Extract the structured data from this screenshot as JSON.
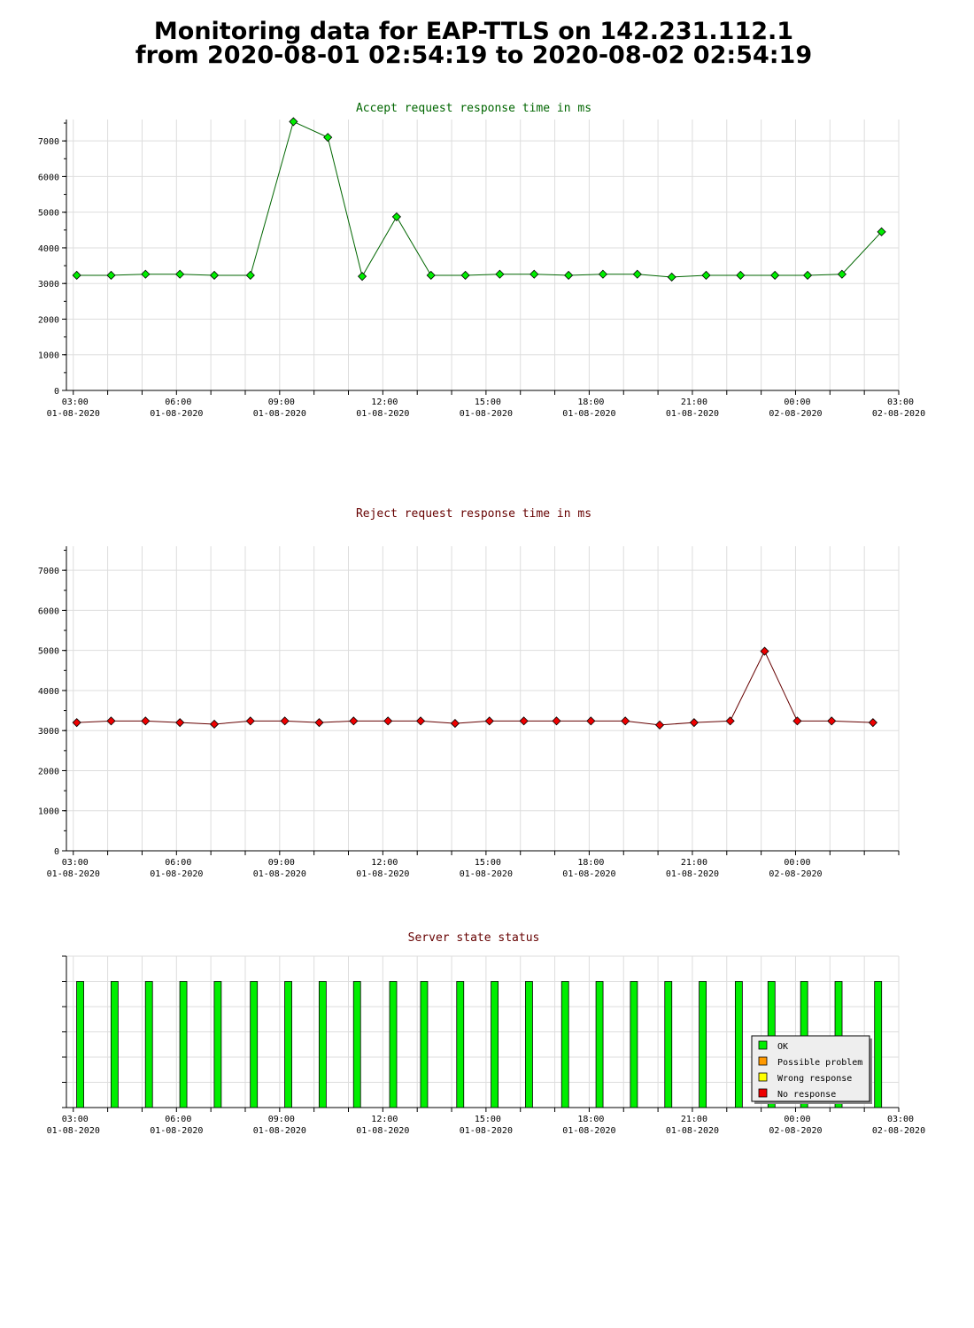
{
  "page": {
    "title_line1": "Monitoring data for EAP-TTLS on 142.231.112.1",
    "title_line2": "from 2020-08-01 02:54:19 to 2020-08-02 02:54:19"
  },
  "colors": {
    "accept_title": "#006600",
    "reject_title": "#660000",
    "status_title": "#660000",
    "accept_line": "#006600",
    "reject_line": "#660000",
    "accept_point": "#00ee00",
    "reject_point": "#ee0000",
    "ok": "#00ee00",
    "possible_problem": "#ff9900",
    "wrong_response": "#ffff00",
    "no_response": "#ee0000",
    "grid": "#dddddd"
  },
  "chart_data": [
    {
      "id": "accept",
      "type": "line",
      "title": "Accept request response time in ms",
      "x_unit": "hours since 2020-08-01 03:00",
      "xlim": [
        -0.2,
        24
      ],
      "ylim": [
        0,
        7600
      ],
      "y_ticks": [
        0,
        1000,
        2000,
        3000,
        4000,
        5000,
        6000,
        7000
      ],
      "x_ticks": [
        {
          "at": 0,
          "time": "03:00",
          "date": "01-08-2020"
        },
        {
          "at": 3,
          "time": "06:00",
          "date": "01-08-2020"
        },
        {
          "at": 6,
          "time": "09:00",
          "date": "01-08-2020"
        },
        {
          "at": 9,
          "time": "12:00",
          "date": "01-08-2020"
        },
        {
          "at": 12,
          "time": "15:00",
          "date": "01-08-2020"
        },
        {
          "at": 15,
          "time": "18:00",
          "date": "01-08-2020"
        },
        {
          "at": 18,
          "time": "21:00",
          "date": "01-08-2020"
        },
        {
          "at": 21,
          "time": "00:00",
          "date": "02-08-2020"
        },
        {
          "at": 24,
          "time": "03:00",
          "date": "02-08-2020"
        }
      ],
      "grid": true,
      "x": [
        0.1,
        1.1,
        2.1,
        3.1,
        4.1,
        5.15,
        6.4,
        7.4,
        8.4,
        9.4,
        10.4,
        11.4,
        12.4,
        13.4,
        14.4,
        15.4,
        16.4,
        17.4,
        18.4,
        19.4,
        20.4,
        21.35,
        22.35,
        23.5
      ],
      "values": [
        3230,
        3230,
        3260,
        3260,
        3230,
        3230,
        7540,
        7100,
        3200,
        4870,
        3230,
        3230,
        3260,
        3260,
        3230,
        3260,
        3260,
        3180,
        3230,
        3230,
        3230,
        3230,
        3260,
        4450
      ]
    },
    {
      "id": "reject",
      "type": "line",
      "title": "Reject request response time in ms",
      "x_unit": "hours since 2020-08-01 03:00",
      "xlim": [
        -0.2,
        24
      ],
      "ylim": [
        0,
        7600
      ],
      "y_ticks": [
        0,
        1000,
        2000,
        3000,
        4000,
        5000,
        6000,
        7000
      ],
      "x_ticks": [
        {
          "at": 0,
          "time": "03:00",
          "date": "01-08-2020"
        },
        {
          "at": 3,
          "time": "06:00",
          "date": "01-08-2020"
        },
        {
          "at": 6,
          "time": "09:00",
          "date": "01-08-2020"
        },
        {
          "at": 9,
          "time": "12:00",
          "date": "01-08-2020"
        },
        {
          "at": 12,
          "time": "15:00",
          "date": "01-08-2020"
        },
        {
          "at": 15,
          "time": "18:00",
          "date": "01-08-2020"
        },
        {
          "at": 18,
          "time": "21:00",
          "date": "01-08-2020"
        },
        {
          "at": 21,
          "time": "00:00",
          "date": "02-08-2020"
        }
      ],
      "grid": true,
      "x": [
        0.1,
        1.1,
        2.1,
        3.1,
        4.1,
        5.15,
        6.15,
        7.15,
        8.15,
        9.15,
        10.1,
        11.1,
        12.1,
        13.1,
        14.05,
        15.05,
        16.05,
        17.05,
        18.05,
        19.1,
        20.1,
        21.05,
        22.05,
        23.25
      ],
      "values": [
        3200,
        3240,
        3240,
        3200,
        3160,
        3240,
        3240,
        3200,
        3240,
        3240,
        3240,
        3180,
        3240,
        3240,
        3240,
        3240,
        3240,
        3140,
        3200,
        3240,
        4980,
        3240,
        3240,
        3200
      ]
    },
    {
      "id": "status",
      "type": "bar",
      "title": "Server state status",
      "x_unit": "hours since 2020-08-01 03:00",
      "xlim": [
        -0.2,
        24
      ],
      "x_ticks": [
        {
          "at": 0,
          "time": "03:00",
          "date": "01-08-2020"
        },
        {
          "at": 3,
          "time": "06:00",
          "date": "01-08-2020"
        },
        {
          "at": 6,
          "time": "09:00",
          "date": "01-08-2020"
        },
        {
          "at": 9,
          "time": "12:00",
          "date": "01-08-2020"
        },
        {
          "at": 12,
          "time": "15:00",
          "date": "01-08-2020"
        },
        {
          "at": 15,
          "time": "18:00",
          "date": "01-08-2020"
        },
        {
          "at": 18,
          "time": "21:00",
          "date": "01-08-2020"
        },
        {
          "at": 21,
          "time": "00:00",
          "date": "02-08-2020"
        },
        {
          "at": 24,
          "time": "03:00",
          "date": "02-08-2020"
        }
      ],
      "x": [
        0.2,
        1.2,
        2.2,
        3.2,
        4.2,
        5.25,
        6.25,
        7.25,
        8.25,
        9.3,
        10.2,
        11.25,
        12.25,
        13.25,
        14.3,
        15.3,
        16.3,
        17.3,
        18.3,
        19.35,
        20.3,
        21.25,
        22.25,
        23.4
      ],
      "states": [
        "OK",
        "OK",
        "OK",
        "OK",
        "OK",
        "OK",
        "OK",
        "OK",
        "OK",
        "OK",
        "OK",
        "OK",
        "OK",
        "OK",
        "OK",
        "OK",
        "OK",
        "OK",
        "OK",
        "OK",
        "OK",
        "OK",
        "OK",
        "OK"
      ],
      "legend_placement": "bottom-right",
      "legend": [
        "OK",
        "Possible problem",
        "Wrong response",
        "No response"
      ]
    }
  ]
}
